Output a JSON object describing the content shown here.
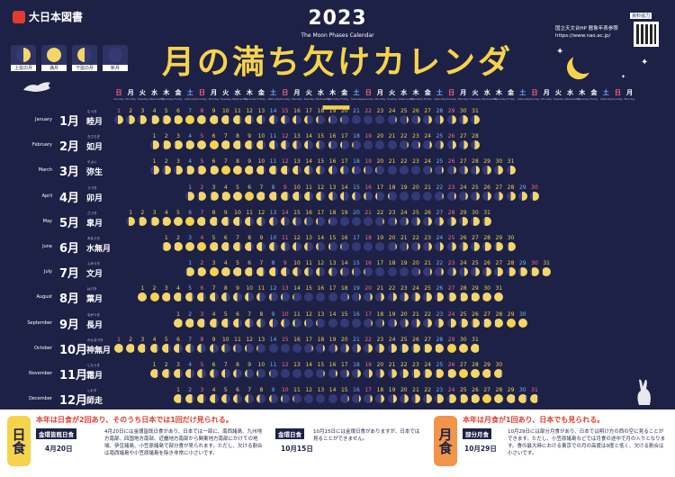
{
  "publisher": "大日本図書",
  "year": "2023",
  "subtitle": "The Moon Phases Calendar",
  "title": "月の満ち欠けカレンダー",
  "source_badge": "資料協力",
  "source_text": "国立天文台HP 暦象年表参照 https://www.nao.ac.jp/",
  "legend": [
    {
      "label": "上弦の月",
      "icon": "first-quarter-icon"
    },
    {
      "label": "満月",
      "icon": "full-moon-icon"
    },
    {
      "label": "下弦の月",
      "icon": "last-quarter-icon"
    },
    {
      "label": "新月",
      "icon": "new-moon-icon"
    }
  ],
  "weekday_header": [
    {
      "jp": "日",
      "en": "Sunday"
    },
    {
      "jp": "月",
      "en": "Monday"
    },
    {
      "jp": "火",
      "en": "Tuesday"
    },
    {
      "jp": "水",
      "en": "Wednesday"
    },
    {
      "jp": "木",
      "en": "Thursday"
    },
    {
      "jp": "金",
      "en": "Friday"
    },
    {
      "jp": "土",
      "en": "Saturday"
    }
  ],
  "colors": {
    "background": "#1e2146",
    "moon": "#f3d66a",
    "shadow": "#343a78",
    "accent": "#f5d34c",
    "sunday": "#ff6b8a",
    "saturday": "#6fb3ff",
    "solar_box": "#f5d34c",
    "lunar_box": "#f2944a"
  },
  "months": [
    {
      "en": "January",
      "num": "1月",
      "jp": "睦月",
      "ruby": "むつき",
      "start": 0,
      "days": 31,
      "new": 22,
      "full": 7
    },
    {
      "en": "February",
      "num": "2月",
      "jp": "如月",
      "ruby": "きさらぎ",
      "start": 3,
      "days": 28,
      "new": 20,
      "full": 6
    },
    {
      "en": "March",
      "num": "3月",
      "jp": "弥生",
      "ruby": "やよい",
      "start": 3,
      "days": 31,
      "new": 22,
      "full": 7
    },
    {
      "en": "April",
      "num": "4月",
      "jp": "卯月",
      "ruby": "うづき",
      "start": 6,
      "days": 30,
      "new": 20,
      "full": 6
    },
    {
      "en": "May",
      "num": "5月",
      "jp": "皐月",
      "ruby": "さつき",
      "start": 1,
      "days": 31,
      "new": 20,
      "full": 6
    },
    {
      "en": "June",
      "num": "6月",
      "jp": "水無月",
      "ruby": "みなづき",
      "start": 4,
      "days": 30,
      "new": 18,
      "full": 4
    },
    {
      "en": "July",
      "num": "7月",
      "jp": "文月",
      "ruby": "ふみづき",
      "start": 6,
      "days": 31,
      "new": 18,
      "full": 3
    },
    {
      "en": "August",
      "num": "8月",
      "jp": "葉月",
      "ruby": "はづき",
      "start": 2,
      "days": 31,
      "new": 16,
      "full": 2
    },
    {
      "en": "September",
      "num": "9月",
      "jp": "長月",
      "ruby": "ながつき",
      "start": 5,
      "days": 30,
      "new": 15,
      "full": 29
    },
    {
      "en": "October",
      "num": "10月",
      "jp": "神無月",
      "ruby": "かんなづき",
      "start": 0,
      "days": 31,
      "new": 15,
      "full": 29
    },
    {
      "en": "November",
      "num": "11月",
      "jp": "霜月",
      "ruby": "しもつき",
      "start": 3,
      "days": 30,
      "new": 13,
      "full": 27
    },
    {
      "en": "December",
      "num": "12月",
      "jp": "師走",
      "ruby": "しわす",
      "start": 5,
      "days": 31,
      "new": 13,
      "full": 27
    }
  ],
  "solar": {
    "box": "日食",
    "headline": "本年は日食が2回あり、そのうち日本では1回だけ見られる。",
    "event1_tag": "金環皆既日食",
    "event1_date": "4月20日",
    "event1_text": "4月20日には金環皆既日食があり、日本では一部に、南西諸島、九州地方南部、四国地方南部、近畿地方南部から関東地方南部にかけての地域、伊豆諸島、小笠原諸島で部分食が見られます。ただし、欠ける割合は南西諸島や小笠原諸島を除き非常に小さいです。",
    "event2_tag": "金環日食",
    "event2_date": "10月15日",
    "event2_text": "10月15日には金環日食がありますが、日本では見ることができません。"
  },
  "lunar": {
    "box": "月食",
    "headline": "本年は月食が1回あり、日本でも見られる。",
    "event_tag": "部分月食",
    "event_date": "10月29日",
    "event_text": "10月29日には部分月食があり、日本では明け方の西の空に見ることができます。ただし、小笠原諸島などでは月食の途中で月の入りとなります。食の最大時における東京での月の高度は9度と低く、欠ける割合は小さいです。"
  }
}
